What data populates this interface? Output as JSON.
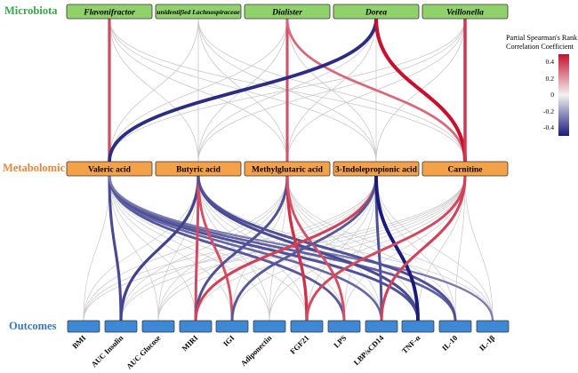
{
  "rows": {
    "microbiota": {
      "label": "Microbiota",
      "color": "#3aa64b"
    },
    "metabolomic": {
      "label": "Metabolomic",
      "color": "#e8883a"
    },
    "outcomes": {
      "label": "Outcomes",
      "color": "#3a78c8"
    }
  },
  "microbiota": [
    "Flavonifractor",
    "unidentified Lachnospiraceae",
    "Dialister",
    "Dorea",
    "Veillonella"
  ],
  "metabolites": [
    "Valeric acid",
    "Butyric acid",
    "Methylglutaric acid",
    "3-Indolepropionic acid",
    "Carnitine"
  ],
  "outcomes": [
    "BMI",
    "AUC Insulin",
    "AUC Glucose",
    "MIRI",
    "IGI",
    "Adiponectin",
    "FGF21",
    "LPS",
    "LBP/sCD14",
    "TNF-α",
    "IL-10",
    "IL-1β"
  ],
  "legend": {
    "title_line1": "Partial Spearman's Rank",
    "title_line2": "Correlation Coefficient",
    "ticks": [
      "0.4",
      "0.2",
      "0",
      "-0.2",
      "-0.4"
    ],
    "colors": {
      "positive": "#c8102e",
      "zero": "#f2f2f2",
      "negative": "#1a1a7a"
    }
  },
  "colors": {
    "microbe_fill": "#8fd16b",
    "metabolite_fill": "#f5a14a",
    "outcome_fill": "#3f88d6",
    "grey_link": "#c8c8c8"
  },
  "micro_links": [
    {
      "from": 0,
      "to": 0,
      "r": 0.3
    },
    {
      "from": 2,
      "to": 2,
      "r": 0.28
    },
    {
      "from": 2,
      "to": 4,
      "r": 0.22
    },
    {
      "from": 3,
      "to": 0,
      "r": -0.4
    },
    {
      "from": 3,
      "to": 4,
      "r": 0.45
    },
    {
      "from": 4,
      "to": 4,
      "r": 0.35
    }
  ],
  "outcome_links": [
    {
      "from": 0,
      "to": 1,
      "r": -0.32
    },
    {
      "from": 0,
      "to": 7,
      "r": -0.28
    },
    {
      "from": 0,
      "to": 8,
      "r": -0.24
    },
    {
      "from": 0,
      "to": 9,
      "r": -0.3
    },
    {
      "from": 0,
      "to": 10,
      "r": -0.26
    },
    {
      "from": 0,
      "to": 11,
      "r": -0.18
    },
    {
      "from": 1,
      "to": 1,
      "r": -0.34
    },
    {
      "from": 1,
      "to": 3,
      "r": 0.3
    },
    {
      "from": 1,
      "to": 4,
      "r": 0.28
    },
    {
      "from": 1,
      "to": 9,
      "r": -0.32
    },
    {
      "from": 1,
      "to": 10,
      "r": -0.3
    },
    {
      "from": 2,
      "to": 3,
      "r": -0.3
    },
    {
      "from": 2,
      "to": 6,
      "r": 0.36
    },
    {
      "from": 2,
      "to": 7,
      "r": 0.28
    },
    {
      "from": 3,
      "to": 3,
      "r": 0.32
    },
    {
      "from": 3,
      "to": 4,
      "r": -0.28
    },
    {
      "from": 3,
      "to": 8,
      "r": -0.3
    },
    {
      "from": 3,
      "to": 9,
      "r": -0.45
    },
    {
      "from": 4,
      "to": 6,
      "r": 0.3
    },
    {
      "from": 4,
      "to": 8,
      "r": 0.32
    }
  ]
}
